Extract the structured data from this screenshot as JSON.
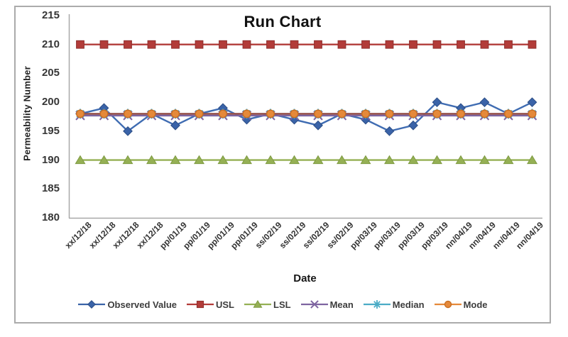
{
  "chart": {
    "title": "Run Chart",
    "xlabel": "Date",
    "ylabel": "Permeability Number"
  },
  "colors": {
    "axis_line": "#a8a8a8",
    "frame_border": "#ababab",
    "tick_text": "#363636",
    "title_text": "#111111"
  },
  "chart_data": {
    "type": "line",
    "title": "Run Chart",
    "xlabel": "Date",
    "ylabel": "Permeability Number",
    "ylim": [
      180,
      215
    ],
    "yticks": [
      215,
      210,
      205,
      200,
      195,
      190,
      185,
      180
    ],
    "grid": false,
    "legend_position": "bottom",
    "categories": [
      "xx/12/18",
      "xx/12/18",
      "xx/12/18",
      "xx/12/18",
      "pp/01/19",
      "pp/01/19",
      "pp/01/19",
      "pp/01/19",
      "ss/02/19",
      "ss/02/19",
      "ss/02/19",
      "ss/02/19",
      "pp/03/19",
      "pp/03/19",
      "pp/03/19",
      "pp/03/19",
      "nn/04/19",
      "nn/04/19",
      "nn/04/19",
      "nn/04/19"
    ],
    "series": [
      {
        "name": "Observed Value",
        "marker": "diamond",
        "color": "#3a63a8",
        "edge": "#2c4e86",
        "line_color": "#3f6cb2",
        "values": [
          198,
          199,
          195,
          198,
          196,
          198,
          199,
          197,
          198,
          197,
          196,
          198,
          197,
          195,
          196,
          200,
          199,
          200,
          198,
          200
        ]
      },
      {
        "name": "USL",
        "marker": "square",
        "color": "#b23c39",
        "edge": "#8e2f2d",
        "constant": 210
      },
      {
        "name": "LSL",
        "marker": "triangle",
        "color": "#95b054",
        "edge": "#7e9a42",
        "constant": 190
      },
      {
        "name": "Mean",
        "marker": "x",
        "color": "#7e64a0",
        "edge": "#7e64a0",
        "constant": 197.7
      },
      {
        "name": "Median",
        "marker": "asterisk",
        "color": "#4bacc6",
        "edge": "#4bacc6",
        "constant": 198
      },
      {
        "name": "Mode",
        "marker": "circle",
        "color": "#e5893a",
        "edge": "#c96f23",
        "line_color": "#9c4b42",
        "constant": 198
      }
    ]
  }
}
